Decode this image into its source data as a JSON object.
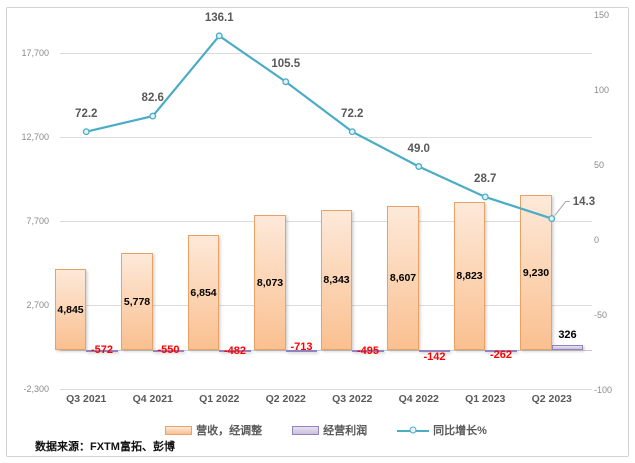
{
  "source_note": "数据来源：FXTM富拓、彭博",
  "colors": {
    "revenue_fill_top": "#FDE9D9",
    "revenue_fill_bottom": "#FAC090",
    "revenue_border": "#E8A265",
    "profit_fill_top": "#E7E1F1",
    "profit_fill_bottom": "#CCC0DA",
    "profit_border": "#9282BE",
    "line": "#4BACC6",
    "negative_label": "#FF0000",
    "positive_label": "#000000",
    "grid": "#DBDBDB"
  },
  "chart_data": {
    "type": "combo",
    "categories": [
      "Q3 2021",
      "Q4 2021",
      "Q1 2022",
      "Q2 2022",
      "Q3 2022",
      "Q4 2022",
      "Q1 2023",
      "Q2 2023"
    ],
    "series": [
      {
        "name": "营收，经调整",
        "type": "bar",
        "axis": "left",
        "values": [
          4845,
          5778,
          6854,
          8073,
          8343,
          8607,
          8823,
          9230
        ],
        "labels": [
          "4,845",
          "5,778",
          "6,854",
          "8,073",
          "8,343",
          "8,607",
          "8,823",
          "9,230"
        ]
      },
      {
        "name": "经营利润",
        "type": "bar",
        "axis": "left",
        "values": [
          -572,
          -550,
          -482,
          -713,
          -495,
          -142,
          -262,
          326
        ],
        "labels": [
          "-572",
          "-550",
          "-482",
          "-713",
          "-495",
          "-142",
          "-262",
          "326"
        ]
      },
      {
        "name": "同比增长%",
        "type": "line",
        "axis": "right",
        "values": [
          72.2,
          82.6,
          136.1,
          105.5,
          72.2,
          49.0,
          28.7,
          14.3
        ],
        "labels": [
          "72.2",
          "82.6",
          "136.1",
          "105.5",
          "72.2",
          "49.0",
          "28.7",
          "14.3"
        ]
      }
    ],
    "left_axis": {
      "min": -2300,
      "max": 17700,
      "tick_values": [
        -2300,
        2700,
        7700,
        12700,
        17700
      ],
      "tick_labels": [
        "-2,300",
        "2,700",
        "7,700",
        "12,700",
        "17,700"
      ]
    },
    "right_axis": {
      "min": -100,
      "max": 150,
      "tick_values": [
        -100,
        -50,
        0,
        50,
        100,
        150
      ],
      "tick_labels": [
        "-100",
        "-50",
        "0",
        "50",
        "100",
        "150"
      ]
    },
    "grid": true,
    "legend_position": "bottom"
  }
}
